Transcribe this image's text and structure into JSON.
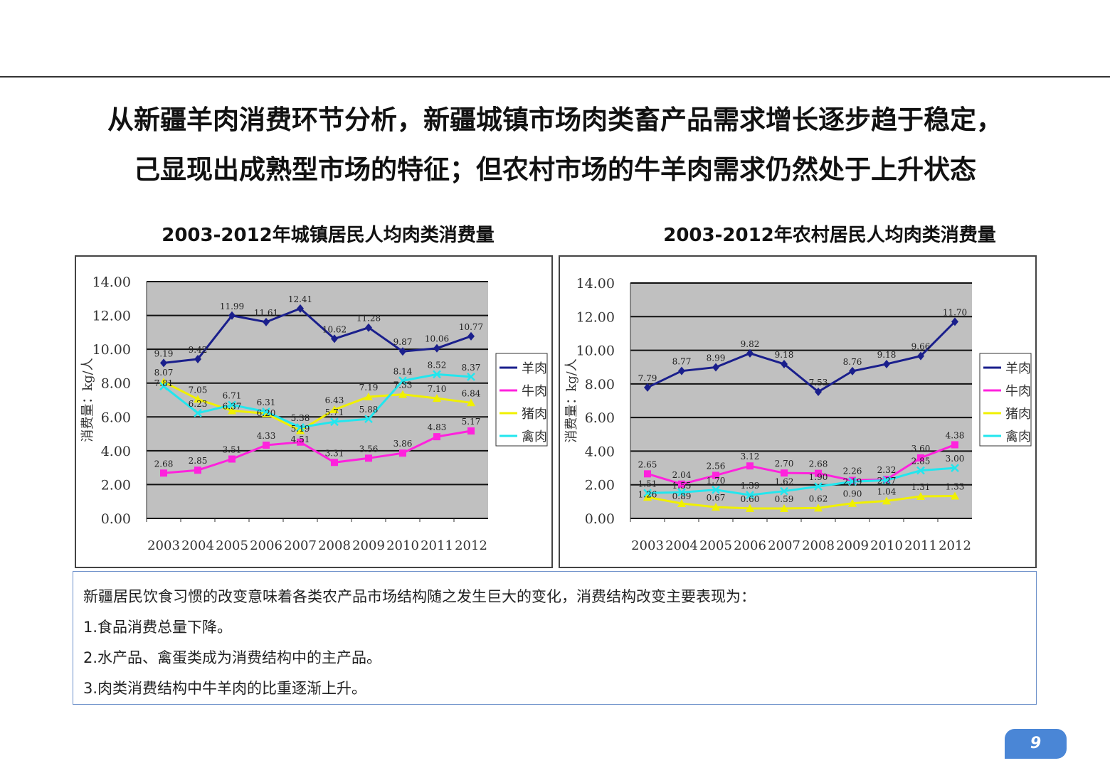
{
  "headline": {
    "line1": "从新疆羊肉消费环节分析，新疆城镇市场肉类畜产品需求增长逐步趋于稳定，",
    "line2": "己显现出成熟型市场的特征；但农村市场的牛羊肉需求仍然处于上升状态"
  },
  "chart_data": [
    {
      "type": "line",
      "title": "2003-2012年城镇居民人均肉类消费量",
      "ylabel": "消费量：kg/人",
      "ylim": [
        0,
        14
      ],
      "yticks": [
        "0.00",
        "2.00",
        "4.00",
        "6.00",
        "8.00",
        "10.00",
        "12.00",
        "14.00"
      ],
      "grid": true,
      "legend": "right",
      "categories": [
        "2003",
        "2004",
        "2005",
        "2006",
        "2007",
        "2008",
        "2009",
        "2010",
        "2011",
        "2012"
      ],
      "series": [
        {
          "name": "羊肉",
          "color": "#1a1f8c",
          "values": [
            9.19,
            9.42,
            11.99,
            11.61,
            12.41,
            10.62,
            11.28,
            9.87,
            10.06,
            10.77
          ]
        },
        {
          "name": "牛肉",
          "color": "#ff22dd",
          "values": [
            2.68,
            2.85,
            3.51,
            4.33,
            4.51,
            3.31,
            3.56,
            3.86,
            4.83,
            5.17
          ]
        },
        {
          "name": "猪肉",
          "color": "#f0f000",
          "values": [
            8.07,
            7.05,
            6.37,
            6.2,
            5.19,
            6.43,
            7.19,
            7.33,
            7.1,
            6.84
          ]
        },
        {
          "name": "禽肉",
          "color": "#22e6ee",
          "values": [
            7.81,
            6.23,
            6.71,
            6.31,
            5.38,
            5.71,
            5.88,
            8.14,
            8.52,
            8.37
          ]
        }
      ]
    },
    {
      "type": "line",
      "title": "2003-2012年农村居民人均肉类消费量",
      "ylabel": "消费量：kg/人",
      "ylim": [
        0,
        14
      ],
      "yticks": [
        "0.00",
        "2.00",
        "4.00",
        "6.00",
        "8.00",
        "10.00",
        "12.00",
        "14.00"
      ],
      "grid": true,
      "legend": "right",
      "categories": [
        "2003",
        "2004",
        "2005",
        "2006",
        "2007",
        "2008",
        "2009",
        "2010",
        "2011",
        "2012"
      ],
      "series": [
        {
          "name": "羊肉",
          "color": "#1a1f8c",
          "values": [
            7.79,
            8.77,
            8.99,
            9.82,
            9.18,
            7.53,
            8.76,
            9.18,
            9.66,
            11.7
          ]
        },
        {
          "name": "牛肉",
          "color": "#ff22dd",
          "values": [
            2.65,
            2.04,
            2.56,
            3.12,
            2.7,
            2.68,
            2.26,
            2.32,
            3.6,
            4.38
          ]
        },
        {
          "name": "猪肉",
          "color": "#f0f000",
          "values": [
            1.26,
            0.89,
            0.67,
            0.6,
            0.59,
            0.62,
            0.9,
            1.04,
            1.31,
            1.33
          ]
        },
        {
          "name": "禽肉",
          "color": "#22e6ee",
          "values": [
            1.51,
            1.55,
            1.7,
            1.39,
            1.62,
            1.9,
            2.19,
            2.27,
            2.85,
            3.0
          ]
        }
      ]
    }
  ],
  "notes": [
    "新疆居民饮食习惯的改变意味着各类农产品市场结构随之发生巨大的变化，消费结构改变主要表现为：",
    "1.食品消费总量下降。",
    "2.水产品、禽蛋类成为消费结构中的主产品。",
    "3.肉类消费结构中牛羊肉的比重逐渐上升。"
  ],
  "page_number": "9"
}
